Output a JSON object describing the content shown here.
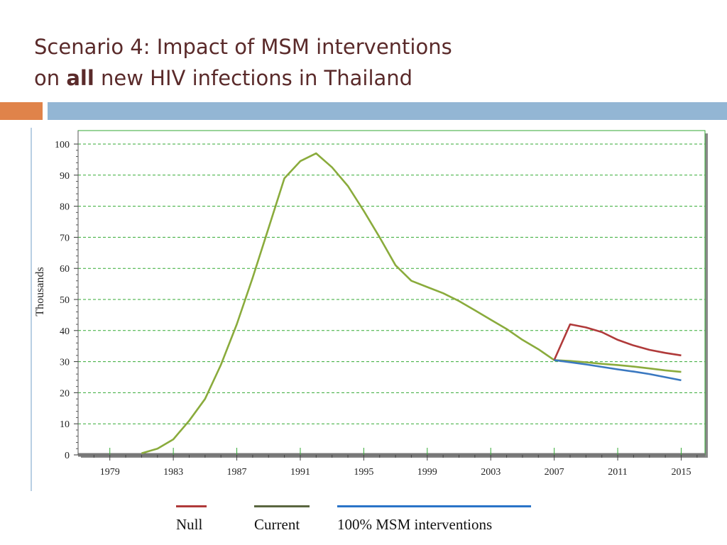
{
  "title": {
    "line1": "Scenario 4: Impact of MSM interventions",
    "line2_prefix": "on ",
    "line2_bold": "all",
    "line2_suffix": " new HIV infections in Thailand"
  },
  "colors": {
    "accent_bar": "#e0834a",
    "header_bar": "#93b6d4",
    "grid": "#33aa33",
    "null": "#b03a3a",
    "current": "#8aab3c",
    "msm": "#3a78c0"
  },
  "chart_data": {
    "type": "line",
    "ylabel": "Thousands",
    "xlabel": "",
    "xlim": [
      1977,
      2016.5
    ],
    "ylim": [
      0,
      100
    ],
    "x_ticks": [
      1979,
      1983,
      1987,
      1991,
      1995,
      1999,
      2003,
      2007,
      2011,
      2015
    ],
    "y_ticks": [
      0,
      10,
      20,
      30,
      40,
      50,
      60,
      70,
      80,
      90,
      100
    ],
    "grid": true,
    "legend_position": "bottom",
    "series": [
      {
        "name": "Current",
        "color": "#8aab3c",
        "x": [
          1981,
          1982,
          1983,
          1984,
          1985,
          1986,
          1987,
          1988,
          1989,
          1990,
          1991,
          1992,
          1993,
          1994,
          1995,
          1996,
          1997,
          1998,
          1999,
          2000,
          2001,
          2002,
          2003,
          2004,
          2005,
          2006,
          2007,
          2008,
          2009,
          2010,
          2011,
          2012,
          2013,
          2014,
          2015
        ],
        "values": [
          0.5,
          2,
          5,
          11,
          18,
          29,
          42,
          57,
          73,
          89,
          94.5,
          97,
          92.5,
          86.5,
          78.5,
          70,
          61,
          56,
          54,
          52,
          49.5,
          46.5,
          43.5,
          40.5,
          37,
          34,
          30.5,
          30.2,
          29.8,
          29.3,
          28.9,
          28.4,
          27.8,
          27.2,
          26.7
        ]
      },
      {
        "name": "Null",
        "color": "#b03a3a",
        "x": [
          2007,
          2008,
          2009,
          2010,
          2011,
          2012,
          2013,
          2014,
          2015
        ],
        "values": [
          30.5,
          42,
          41,
          39.5,
          37,
          35.2,
          33.8,
          32.8,
          32
        ]
      },
      {
        "name": "100% MSM interventions",
        "color": "#3a78c0",
        "x": [
          2007,
          2008,
          2009,
          2010,
          2011,
          2012,
          2013,
          2014,
          2015
        ],
        "values": [
          30.5,
          29.8,
          29.1,
          28.3,
          27.5,
          26.8,
          26,
          25,
          24
        ]
      }
    ]
  },
  "legend": [
    {
      "label": "Null",
      "color": "#b03a3a"
    },
    {
      "label": "Current",
      "color": "#5a6640"
    },
    {
      "label": "100% MSM interventions",
      "color": "#2a74c8"
    }
  ]
}
